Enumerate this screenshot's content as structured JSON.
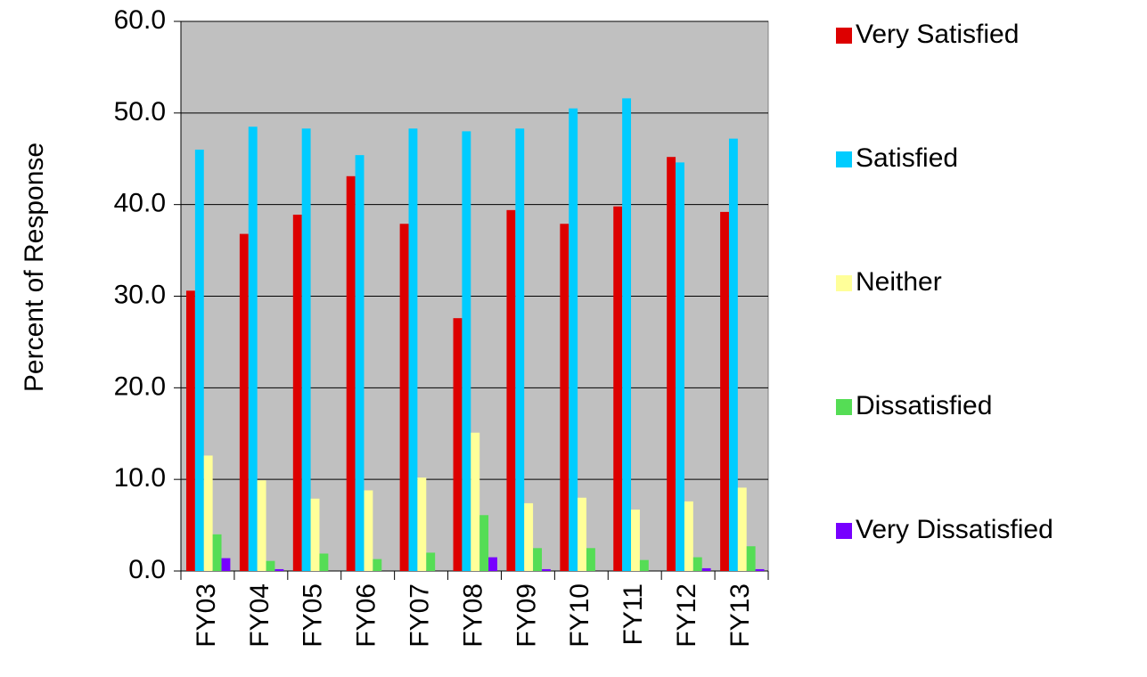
{
  "chart_data": {
    "type": "bar",
    "y_label": "Percent of Response",
    "categories": [
      "FY03",
      "FY04",
      "FY05",
      "FY06",
      "FY07",
      "FY08",
      "FY09",
      "FY10",
      "FY11",
      "FY12",
      "FY13"
    ],
    "series": [
      {
        "name": "Very Satisfied",
        "color": "#dd0000",
        "values": [
          30.6,
          36.8,
          38.9,
          43.1,
          37.9,
          27.6,
          39.4,
          37.9,
          39.8,
          45.2,
          39.2
        ]
      },
      {
        "name": "Satisfied",
        "color": "#00ccff",
        "values": [
          46.0,
          48.5,
          48.3,
          45.4,
          48.3,
          48.0,
          48.3,
          50.5,
          51.6,
          44.6,
          47.2
        ]
      },
      {
        "name": "Neither",
        "color": "#ffff99",
        "values": [
          12.6,
          9.9,
          7.9,
          8.8,
          10.2,
          15.1,
          7.4,
          8.0,
          6.7,
          7.6,
          9.1
        ]
      },
      {
        "name": "Dissatisfied",
        "color": "#55dd55",
        "values": [
          4.0,
          1.1,
          1.9,
          1.3,
          2.0,
          6.1,
          2.5,
          2.5,
          1.2,
          1.5,
          2.7
        ]
      },
      {
        "name": "Very Dissatisfied",
        "color": "#7700ff",
        "values": [
          1.4,
          0.2,
          0.0,
          0.0,
          0.0,
          1.5,
          0.2,
          0.0,
          0.0,
          0.3,
          0.2
        ]
      }
    ],
    "ylim": [
      0,
      60
    ],
    "yticks": [
      {
        "value": 0,
        "label": "0.0"
      },
      {
        "value": 10,
        "label": "10.0"
      },
      {
        "value": 20,
        "label": "20.0"
      },
      {
        "value": 30,
        "label": "30.0"
      },
      {
        "value": 40,
        "label": "40.0"
      },
      {
        "value": 50,
        "label": "50.0"
      },
      {
        "value": 60,
        "label": "60.0"
      }
    ],
    "grid": true,
    "legend": "right"
  }
}
